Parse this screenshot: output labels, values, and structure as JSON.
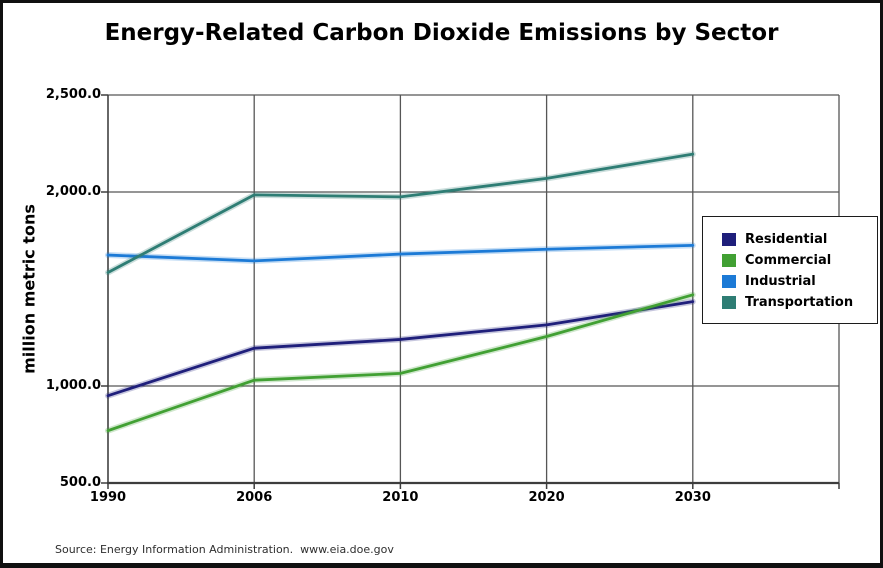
{
  "title": "Energy-Related Carbon Dioxide Emissions by Sector",
  "source_note": "Source: Energy Information Administration.  www.eia.doe.gov",
  "chart_data": {
    "type": "line",
    "title": "Energy-Related Carbon Dioxide Emissions by Sector",
    "xlabel": "",
    "ylabel": "million metric tons",
    "categories": [
      "1990",
      "2006",
      "2010",
      "2020",
      "2030"
    ],
    "series": [
      {
        "name": "Residential",
        "color": "#1F1F7B",
        "values": [
          950,
          1195,
          1240,
          1315,
          1435
        ]
      },
      {
        "name": "Commercial",
        "color": "#41A033",
        "values": [
          770,
          1030,
          1065,
          1255,
          1470
        ]
      },
      {
        "name": "Industrial",
        "color": "#1C7AD6",
        "values": [
          1675,
          1645,
          1680,
          1705,
          1725
        ]
      },
      {
        "name": "Transportation",
        "color": "#2E7D74",
        "values": [
          1585,
          1985,
          1975,
          2070,
          2195
        ]
      }
    ],
    "ylim": [
      500,
      2500
    ],
    "yticks": [
      {
        "value": 500,
        "label": "500.0"
      },
      {
        "value": 1000,
        "label": "1,000.0"
      },
      {
        "value": 2000,
        "label": "2,000.0"
      },
      {
        "value": 2500,
        "label": "2,500.0"
      }
    ],
    "grid": true,
    "legend_position": "right",
    "legend_border": true,
    "colors": {
      "gridline": "#565656",
      "axis": "#3d3d3d",
      "text": "#000000",
      "frame_border": "#101010"
    }
  }
}
